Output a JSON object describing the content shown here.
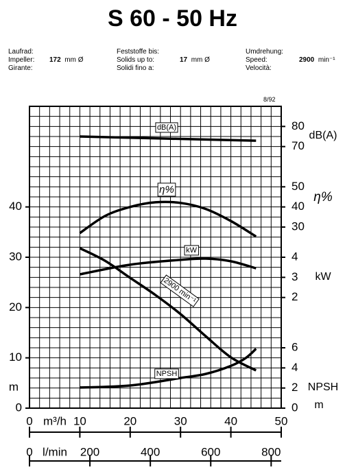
{
  "header": {
    "title": "S 60 - 50 Hz",
    "impeller_labels": [
      "Laufrad:",
      "Impeller:",
      "Girante:"
    ],
    "impeller_value": "172",
    "impeller_unit": "mm Ø",
    "solids_labels": [
      "Feststoffe bis:",
      "Solids up to:",
      "Solidi fino a:"
    ],
    "solids_value": "17",
    "solids_unit": "mm Ø",
    "speed_labels": [
      "Umdrehung:",
      "Speed:",
      "Velocità:"
    ],
    "speed_value": "2900",
    "speed_unit": "min⁻¹",
    "code": "8/92"
  },
  "chart_data": {
    "type": "line",
    "xlabel": "m³/h",
    "xlim": [
      0,
      50
    ],
    "xticks": [
      0,
      10,
      20,
      30,
      40,
      50
    ],
    "x2label": "l/min",
    "x2lim": [
      0,
      833.3
    ],
    "x2ticks": [
      0,
      200,
      400,
      600,
      800
    ],
    "ylabel": "m",
    "ylim": [
      0,
      60
    ],
    "yticks": [
      0,
      10,
      20,
      30,
      40
    ],
    "grid": true,
    "right_axes": [
      {
        "name": "dB(A)",
        "lim": [
          -60,
          90
        ],
        "ticks": [
          70,
          80
        ]
      },
      {
        "name": "η%",
        "lim": [
          -60,
          90
        ],
        "ticks": [
          30,
          40,
          50
        ]
      },
      {
        "name": "kW",
        "lim": [
          -3.5,
          11.5
        ],
        "ticks": [
          2,
          3,
          4
        ]
      },
      {
        "name": "NPSH",
        "unit": "m",
        "lim": [
          0,
          30
        ],
        "ticks": [
          0,
          2,
          4,
          6
        ]
      }
    ],
    "series": [
      {
        "name": "dB(A)",
        "axis": 0,
        "color": "#000000",
        "x": [
          10,
          20,
          30,
          40,
          45
        ],
        "values": [
          75,
          74.4,
          73.8,
          73.2,
          72.9
        ]
      },
      {
        "name": "η%",
        "axis": 1,
        "color": "#000000",
        "x": [
          10,
          15,
          20,
          25,
          30,
          35,
          40,
          45
        ],
        "values": [
          27,
          35.5,
          40,
          42.3,
          42,
          39,
          33,
          25.3
        ]
      },
      {
        "name": "kW",
        "axis": 2,
        "color": "#000000",
        "x": [
          10,
          20,
          30,
          35,
          40,
          45
        ],
        "values": [
          3.15,
          3.63,
          3.87,
          3.93,
          3.8,
          3.45
        ]
      },
      {
        "name": "2900 min⁻¹",
        "axis": "y",
        "color": "#000000",
        "x": [
          10,
          15,
          20,
          25,
          30,
          35,
          40,
          45
        ],
        "values": [
          31.8,
          29.3,
          25.9,
          22.5,
          18.7,
          14.3,
          10.1,
          7.5
        ]
      },
      {
        "name": "NPSH",
        "axis": 3,
        "color": "#000000",
        "x": [
          10,
          20,
          30,
          35,
          40,
          43,
          45
        ],
        "values": [
          2.05,
          2.25,
          3,
          3.4,
          4.2,
          5,
          5.9
        ]
      }
    ]
  }
}
